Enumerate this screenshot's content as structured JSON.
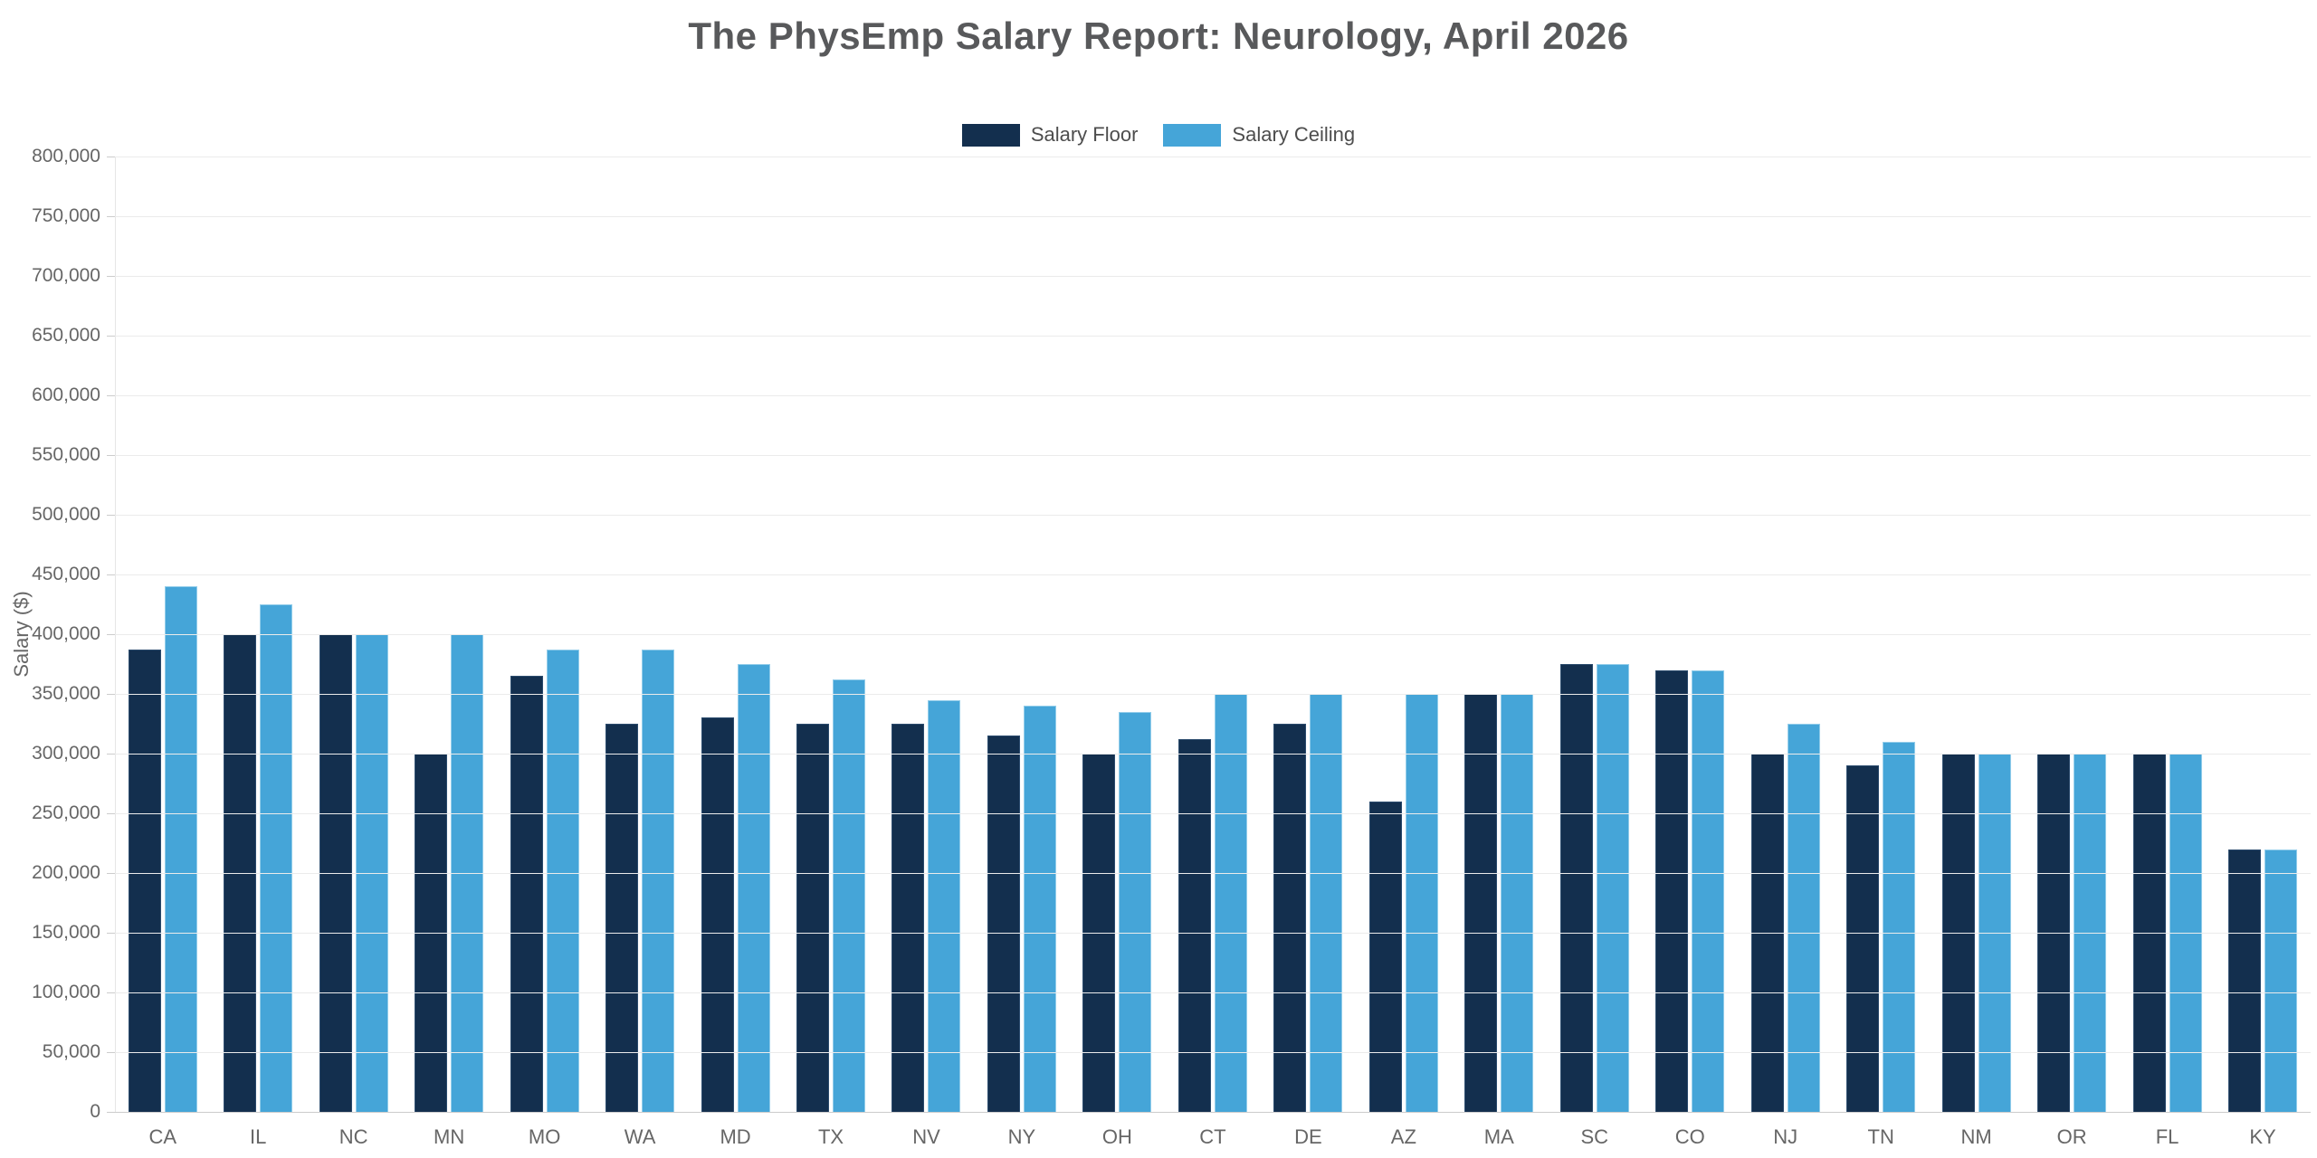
{
  "title": "The PhysEmp Salary Report: Neurology, April 2026",
  "colors": {
    "floor": "#132f4e",
    "ceiling": "#45a5d8",
    "title_text": "#58595b",
    "axis_text": "#666666",
    "gridline": "#ebebeb",
    "baseline": "#cccccc",
    "background": "#ffffff"
  },
  "chart_data": {
    "type": "bar",
    "title": "The PhysEmp Salary Report: Neurology, April 2026",
    "xlabel": "",
    "ylabel": "Salary ($)",
    "ylim": [
      0,
      800000
    ],
    "ytick_step": 50000,
    "grid": true,
    "legend_position": "top-center",
    "categories": [
      "CA",
      "IL",
      "NC",
      "MN",
      "MO",
      "WA",
      "MD",
      "TX",
      "NV",
      "NY",
      "OH",
      "CT",
      "DE",
      "AZ",
      "MA",
      "SC",
      "CO",
      "NJ",
      "TN",
      "NM",
      "OR",
      "FL",
      "KY"
    ],
    "series": [
      {
        "name": "Salary Floor",
        "color": "#132f4e",
        "values": [
          387500,
          400000,
          400000,
          300000,
          365000,
          325000,
          330000,
          325000,
          325000,
          315000,
          300000,
          312500,
          325000,
          260000,
          350000,
          375000,
          370000,
          300000,
          290000,
          300000,
          300000,
          300000,
          220000
        ]
      },
      {
        "name": "Salary Ceiling",
        "color": "#45a5d8",
        "values": [
          440000,
          425000,
          400000,
          400000,
          387500,
          387500,
          375000,
          362500,
          345000,
          340000,
          335000,
          350000,
          350000,
          350000,
          350000,
          375000,
          370000,
          325000,
          310000,
          300000,
          300000,
          300000,
          220000
        ]
      }
    ]
  }
}
